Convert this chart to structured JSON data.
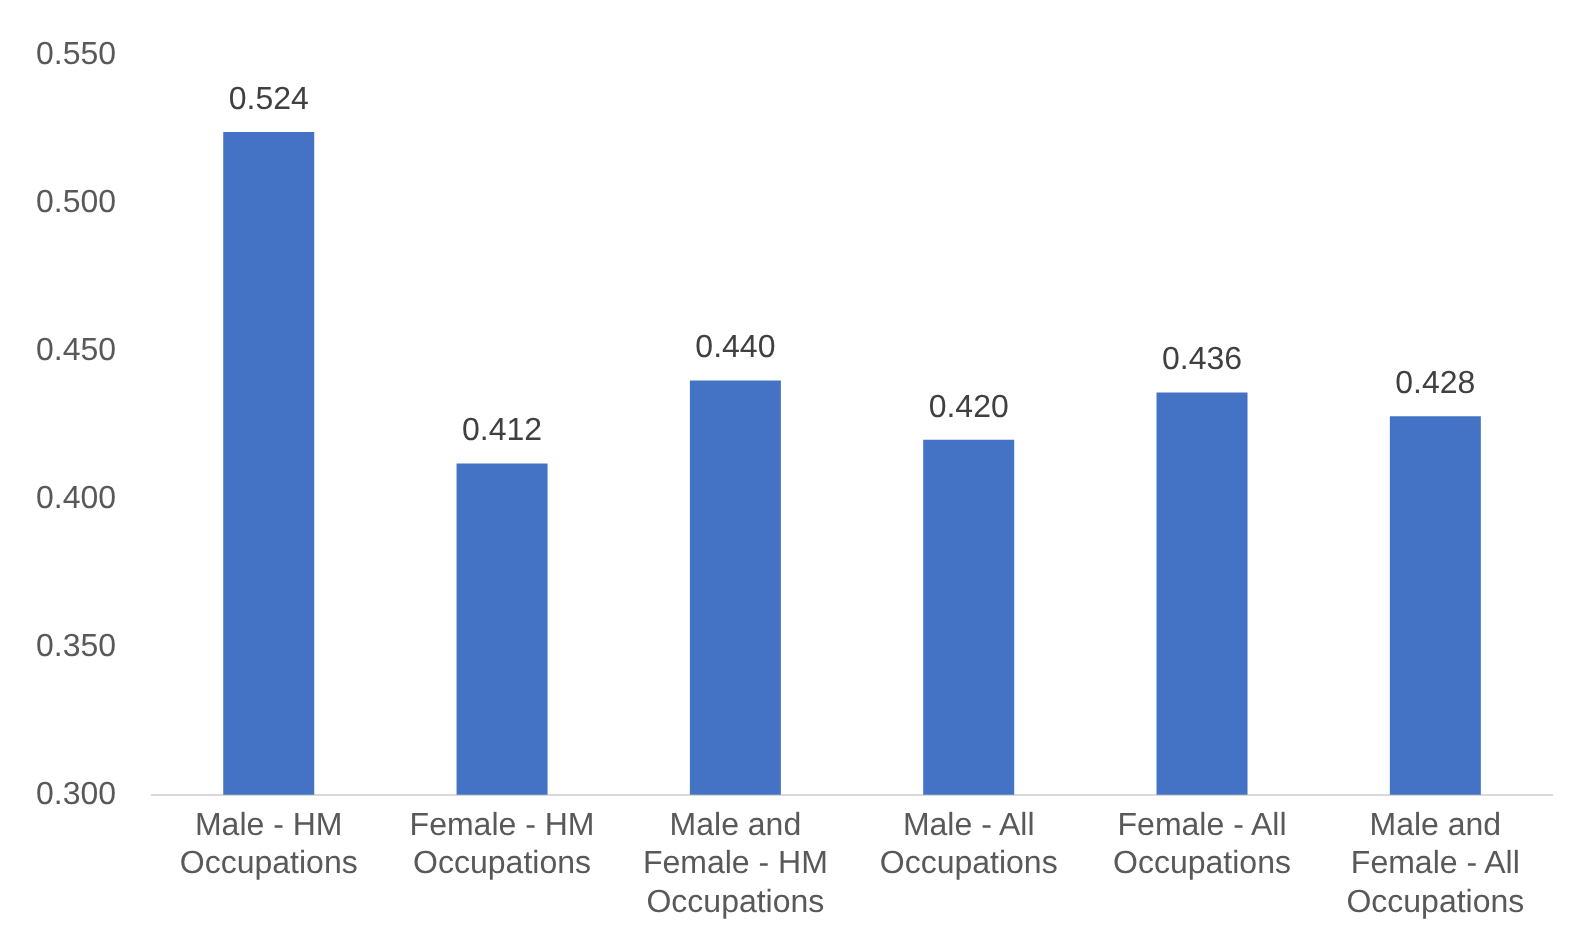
{
  "chart_data": {
    "type": "bar",
    "categories": [
      "Male - HM Occupations",
      "Female - HM Occupations",
      "Male and Female - HM Occupations",
      "Male - All Occupations",
      "Female - All Occupations",
      "Male and Female - All Occupations"
    ],
    "values": [
      0.524,
      0.412,
      0.44,
      0.42,
      0.436,
      0.428
    ],
    "value_labels": [
      "0.524",
      "0.412",
      "0.440",
      "0.420",
      "0.436",
      "0.428"
    ],
    "color": "#4472c4",
    "ylim": [
      0.3,
      0.55
    ],
    "yticks": [
      {
        "value": 0.3,
        "label": "0.300"
      },
      {
        "value": 0.35,
        "label": "0.350"
      },
      {
        "value": 0.4,
        "label": "0.400"
      },
      {
        "value": 0.45,
        "label": "0.450"
      },
      {
        "value": 0.5,
        "label": "0.500"
      },
      {
        "value": 0.55,
        "label": "0.550"
      }
    ],
    "grid": false,
    "legend": false
  }
}
